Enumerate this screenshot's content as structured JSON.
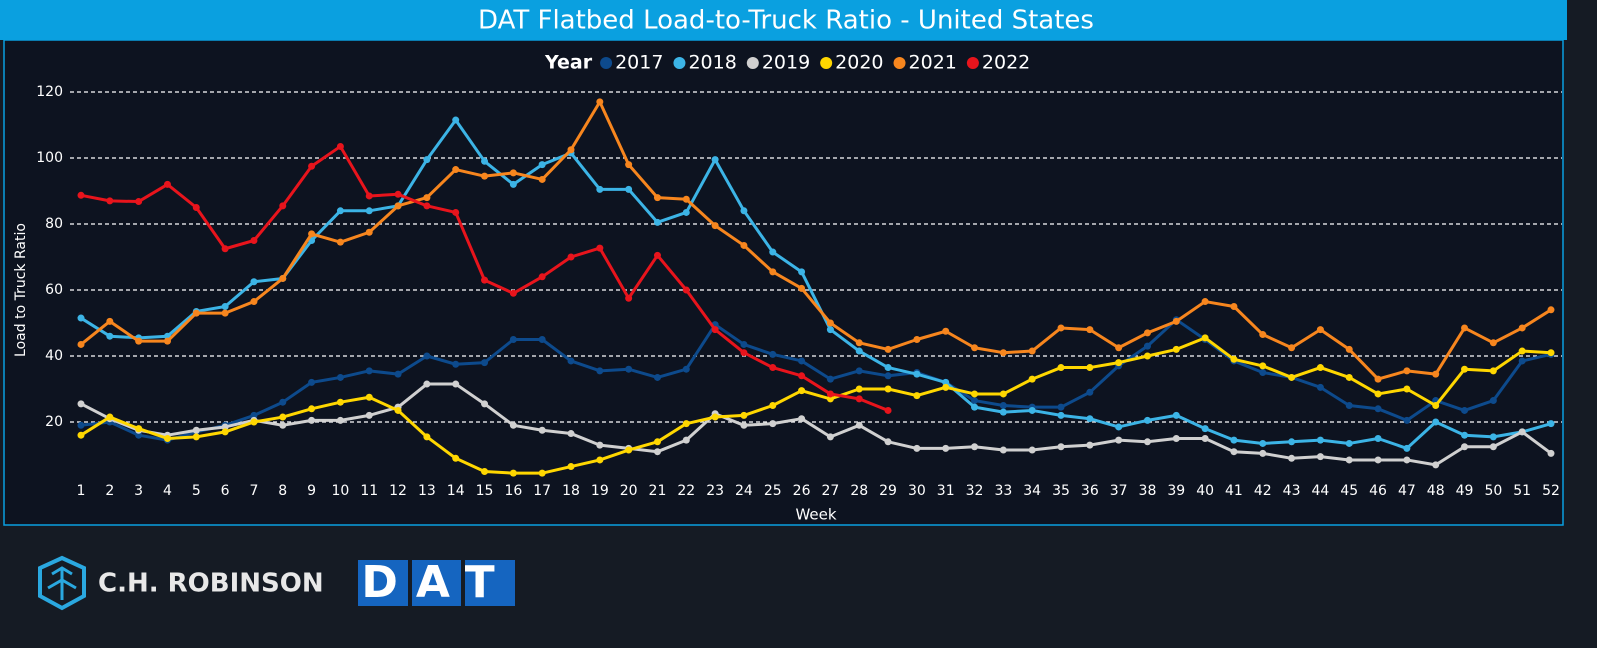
{
  "chart_data": {
    "type": "line",
    "title": "DAT Flatbed Load-to-Truck Ratio - United States",
    "legend_title": "Year",
    "x_label": "Week",
    "y_label": "Load to Truck Ratio",
    "x": [
      1,
      2,
      3,
      4,
      5,
      6,
      7,
      8,
      9,
      10,
      11,
      12,
      13,
      14,
      15,
      16,
      17,
      18,
      19,
      20,
      21,
      22,
      23,
      24,
      25,
      26,
      27,
      28,
      29,
      30,
      31,
      32,
      33,
      34,
      35,
      36,
      37,
      38,
      39,
      40,
      41,
      42,
      43,
      44,
      45,
      46,
      47,
      48,
      49,
      50,
      51,
      52
    ],
    "xlim": [
      1,
      52
    ],
    "xticks": [
      1,
      2,
      3,
      4,
      5,
      6,
      7,
      8,
      9,
      10,
      11,
      12,
      13,
      14,
      15,
      16,
      17,
      18,
      19,
      20,
      21,
      22,
      23,
      24,
      25,
      26,
      27,
      28,
      29,
      30,
      31,
      32,
      33,
      34,
      35,
      36,
      37,
      38,
      39,
      40,
      41,
      42,
      43,
      44,
      45,
      46,
      47,
      48,
      49,
      50,
      51,
      52
    ],
    "ylim": [
      0,
      120
    ],
    "yticks": [
      20,
      40,
      60,
      80,
      100,
      120
    ],
    "grid": true,
    "legend": "top",
    "series": [
      {
        "name": "2017",
        "color": "#0d4a8c",
        "values": [
          19,
          20,
          16,
          14.5,
          17,
          19,
          22,
          26,
          32,
          33.5,
          35.5,
          34.5,
          40,
          37.5,
          38,
          45,
          45,
          38.5,
          35.5,
          36,
          33.5,
          36,
          49.5,
          43.5,
          40.5,
          38.5,
          33,
          35.5,
          34,
          35,
          32,
          26.5,
          25,
          24.5,
          24.5,
          29,
          37,
          43,
          51,
          45,
          38.5,
          35,
          33.5,
          30.5,
          25,
          24,
          20.5,
          26.5,
          23.5,
          26.5,
          38.5,
          40.5
        ]
      },
      {
        "name": "2018",
        "color": "#3cb4e6",
        "values": [
          51.5,
          46,
          45.5,
          46,
          53.5,
          55,
          62.5,
          63.5,
          75,
          84,
          84,
          85.5,
          99.5,
          111.5,
          99,
          92,
          98,
          101.5,
          90.5,
          90.5,
          80.5,
          83.5,
          99.5,
          84,
          71.5,
          65.5,
          48,
          41.5,
          36.5,
          34.5,
          32,
          24.5,
          23,
          23.5,
          22,
          21,
          18.5,
          20.5,
          22,
          18,
          14.5,
          13.5,
          14,
          14.5,
          13.5,
          15,
          12,
          20,
          16,
          15.5,
          17,
          19.5
        ]
      },
      {
        "name": "2019",
        "color": "#d0d0d0",
        "values": [
          25.5,
          21,
          17.5,
          16,
          17.5,
          18.5,
          20.5,
          19,
          20.5,
          20.5,
          22,
          24.5,
          31.5,
          31.5,
          25.5,
          19,
          17.5,
          16.5,
          13,
          12,
          11,
          14.5,
          22.5,
          19,
          19.5,
          21,
          15.5,
          19,
          14,
          12,
          12,
          12.5,
          11.5,
          11.5,
          12.5,
          13,
          14.5,
          14,
          15,
          15,
          11,
          10.5,
          9,
          9.5,
          8.5,
          8.5,
          8.5,
          7,
          12.5,
          12.5,
          17,
          10.5
        ]
      },
      {
        "name": "2020",
        "color": "#ffd700",
        "values": [
          16,
          21.5,
          18,
          15,
          15.5,
          17,
          20,
          21.5,
          24,
          26,
          27.5,
          23.5,
          15.5,
          9,
          5,
          4.5,
          4.5,
          6.5,
          8.5,
          11.5,
          14,
          19.5,
          21.5,
          22,
          25,
          29.5,
          27,
          30,
          30,
          28,
          30.5,
          28.5,
          28.5,
          33,
          36.5,
          36.5,
          38,
          40,
          42,
          45.5,
          39,
          37,
          33.5,
          36.5,
          33.5,
          28.5,
          30,
          25,
          36,
          35.5,
          41.5,
          41
        ]
      },
      {
        "name": "2021",
        "color": "#f7861e",
        "values": [
          43.5,
          50.5,
          44.5,
          44.5,
          53,
          53,
          56.5,
          63.5,
          77,
          74.5,
          77.5,
          85.5,
          88,
          96.5,
          94.5,
          95.5,
          93.5,
          102.5,
          117,
          98,
          88,
          87.5,
          79.5,
          73.5,
          65.5,
          60.5,
          50,
          44,
          42,
          45,
          47.5,
          42.5,
          41,
          41.5,
          48.5,
          48,
          42.5,
          47,
          50.5,
          56.5,
          55,
          46.5,
          42.5,
          48,
          42,
          33,
          35.5,
          34.5,
          48.5,
          44,
          48.5,
          54
        ]
      },
      {
        "name": "2022",
        "color": "#e8141c",
        "values": [
          88.7,
          87,
          86.8,
          92,
          85,
          72.5,
          75,
          85.5,
          97.5,
          103.5,
          88.5,
          89,
          85.5,
          83.5,
          63,
          59,
          64,
          70,
          72.7,
          57.5,
          70.5,
          60,
          48,
          41,
          36.5,
          34,
          28.5,
          27,
          23.5,
          null,
          null,
          null,
          null,
          null,
          null,
          null,
          null,
          null,
          null,
          null,
          null,
          null,
          null,
          null,
          null,
          null,
          null,
          null,
          null,
          null,
          null,
          null
        ]
      }
    ]
  },
  "footer": {
    "brand": "C.H. ROBINSON",
    "partner": "DAT"
  }
}
